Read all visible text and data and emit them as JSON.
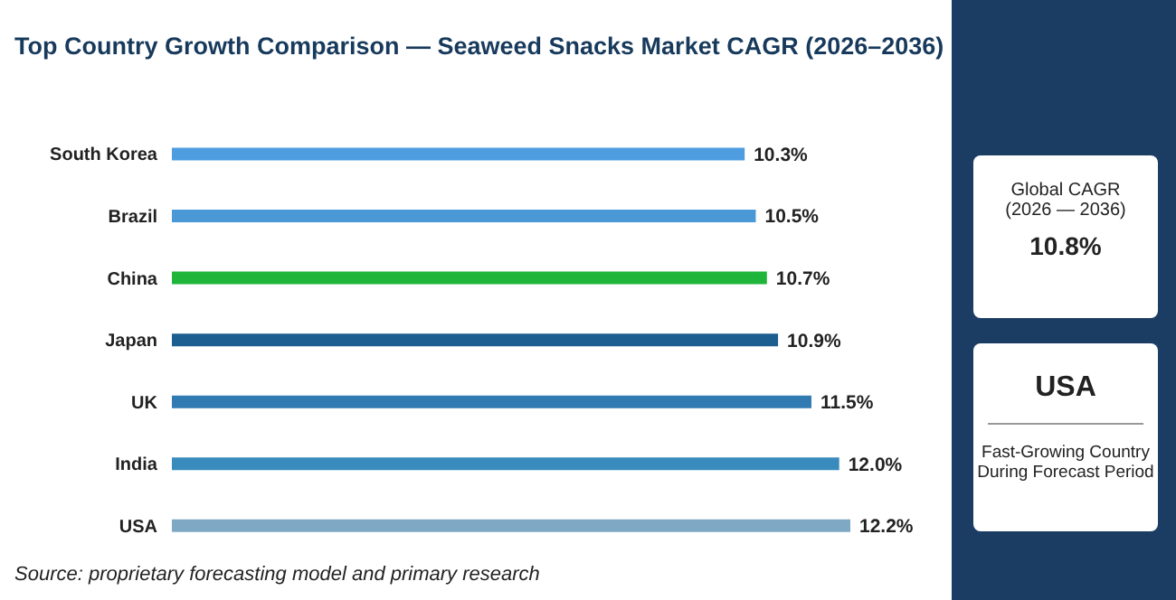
{
  "chart_data": [
    {
      "type": "bar",
      "orientation": "horizontal",
      "title": "Top Country Growth Comparison — Seaweed Snacks Market CAGR (2026–2036)",
      "categories": [
        "South Korea",
        "Brazil",
        "China",
        "Japan",
        "UK",
        "India",
        "USA"
      ],
      "values": [
        10.3,
        10.5,
        10.7,
        10.9,
        11.5,
        12.0,
        12.2
      ],
      "colors": [
        "#4d9de0",
        "#4a98d6",
        "#1fb53a",
        "#1b5e8f",
        "#2f7bb2",
        "#3a8bbd",
        "#7ea8c4"
      ],
      "value_labels": [
        "10.3%",
        "10.5%",
        "10.7%",
        "10.9%",
        "11.5%",
        "12.0%",
        "12.2%"
      ],
      "tick_labels": "y",
      "annotations": [
        "Source: proprietary forecasting model and primary research"
      ]
    },
    {
      "type": "other",
      "annotations": [
        "Global CAGR",
        "(2026 — 2036)",
        "10.8%",
        "USA",
        "Fast-Growing Country",
        "During Forecast Period"
      ]
    }
  ]
}
